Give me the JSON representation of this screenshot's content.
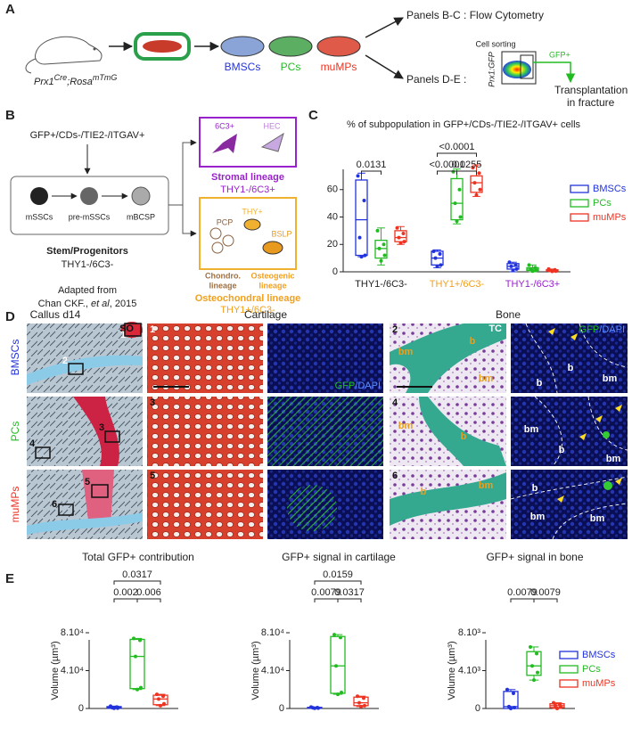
{
  "panel_a": {
    "letter": "A",
    "mouse_label": {
      "gene1": "Prx1",
      "sup1": "Cre",
      "gene2": ";Rosa",
      "sup2": "mTmG"
    },
    "cell_types": [
      "BMSCs",
      "PCs",
      "muMPs"
    ],
    "route_1": "Panels B-C : Flow Cytometry",
    "route_2": "Panels D-E :",
    "sorting": "Cell sorting",
    "flow_axis": "Prx1:GFP",
    "gate": "GFP+",
    "outcome": [
      "Transplantation",
      "in fracture"
    ]
  },
  "panel_b": {
    "letter": "B",
    "gate": "GFP+/CDs-/TIE2-/ITGAV+",
    "stem_cells": [
      "mSSCs",
      "pre-mSSCs",
      "mBCSP"
    ],
    "stem_title": "Stem/Progenitors",
    "stem_marker": "THY1-/6C3-",
    "citation": [
      "Adapted from",
      "Chan CKF., ",
      "et al",
      ", 2015"
    ],
    "stromal_cells": [
      "6C3+",
      "HEC"
    ],
    "stromal_title": "Stromal lineage",
    "stromal_marker": "THY1-/6C3+",
    "osteo_cells": [
      "PCP",
      "THY+",
      "BSLP"
    ],
    "osteo_sublineages": [
      [
        "Chondro.",
        "lineage"
      ],
      [
        "Osteogenic",
        "lineage"
      ]
    ],
    "osteo_title": "Osteochondral lineage",
    "osteo_marker": "THY1+/6C3-"
  },
  "panel_c_letter": "C",
  "panel_d": {
    "letter": "D",
    "headers": [
      "Callus d14",
      "Cartilage",
      "Bone"
    ],
    "rows": [
      "BMSCs",
      "PCs",
      "muMPs"
    ],
    "stains": [
      "SO",
      "TC"
    ],
    "callus_boxes": [
      "1",
      "2",
      "3",
      "4",
      "5",
      "6"
    ],
    "panel_tags": [
      "1",
      "3",
      "5",
      "2",
      "4",
      "6"
    ],
    "channel_labels": [
      [
        "GFP",
        "/DAPI"
      ],
      [
        "GFP",
        "/DAPI"
      ]
    ],
    "bone_tc_labels": [
      [
        "bm",
        "b",
        "bm"
      ],
      [
        "bm",
        "b"
      ],
      [
        "b",
        "bm"
      ]
    ],
    "bone_gfp_labels": [
      [
        "b",
        "b",
        "bm"
      ],
      [
        "bm",
        "b",
        "bm"
      ],
      [
        "b",
        "bm",
        "bm"
      ]
    ]
  },
  "panel_e_letter": "E",
  "chart_data": [
    {
      "type": "box",
      "title": "% of subpopulation in GFP+/CDs-/TIE2-/ITGAV+ cells",
      "categories": [
        "THY1-/6C3-",
        "THY1+/6C3-",
        "THY1-/6C3+"
      ],
      "ylim": [
        0,
        80
      ],
      "yticks": [
        0,
        20,
        40,
        60
      ],
      "legend": "right",
      "annotations": [
        "0.0131",
        "<0.0001",
        "0.0255",
        "<0.0001"
      ],
      "series": [
        {
          "name": "BMSCs",
          "color": "#2233dd",
          "values": [
            {
              "min": 11,
              "q1": 12,
              "median": 38,
              "q3": 67,
              "max": 72,
              "points": [
                70,
                52,
                25,
                12,
                11
              ]
            },
            {
              "min": 3,
              "q1": 5,
              "median": 10,
              "q3": 15,
              "max": 16,
              "points": [
                15,
                13,
                10,
                5,
                4
              ]
            },
            {
              "min": 0,
              "q1": 2,
              "median": 4,
              "q3": 6,
              "max": 7,
              "points": [
                7,
                5,
                4,
                2,
                1
              ]
            }
          ]
        },
        {
          "name": "PCs",
          "color": "#22bb22",
          "values": [
            {
              "min": 5,
              "q1": 10,
              "median": 17,
              "q3": 23,
              "max": 32,
              "points": [
                30,
                20,
                17,
                12,
                8
              ]
            },
            {
              "min": 35,
              "q1": 38,
              "median": 50,
              "q3": 68,
              "max": 75,
              "points": [
                73,
                60,
                50,
                40,
                37
              ]
            },
            {
              "min": 0,
              "q1": 1,
              "median": 2,
              "q3": 3,
              "max": 5,
              "points": [
                5,
                3,
                2,
                1,
                0.5
              ]
            }
          ]
        },
        {
          "name": "muMPs",
          "color": "#ee3322",
          "values": [
            {
              "min": 20,
              "q1": 22,
              "median": 25,
              "q3": 30,
              "max": 33,
              "points": [
                32,
                28,
                25,
                22,
                21
              ]
            },
            {
              "min": 55,
              "q1": 58,
              "median": 65,
              "q3": 70,
              "max": 78,
              "points": [
                76,
                72,
                65,
                60,
                56
              ]
            },
            {
              "min": 0,
              "q1": 0.5,
              "median": 1,
              "q3": 1.5,
              "max": 2,
              "points": [
                2,
                1.5,
                1,
                0.5,
                0.3
              ]
            }
          ]
        }
      ]
    },
    {
      "type": "box",
      "legend": "right",
      "subplots": [
        {
          "title": "Total GFP+ contribution",
          "ylabel": "Volume (µm³)",
          "ylim": [
            0,
            80000
          ],
          "yticks": [
            0,
            {
              "value": 40000,
              "label": "4.10⁴"
            },
            {
              "value": 80000,
              "label": "8.10⁴"
            }
          ],
          "annotations": [
            "0.0317",
            "0.002",
            "0.006"
          ]
        },
        {
          "title": "GFP+ signal in cartilage",
          "ylabel": "Volume (µm³)",
          "ylim": [
            0,
            80000
          ],
          "yticks": [
            0,
            {
              "value": 40000,
              "label": "4.10⁴"
            },
            {
              "value": 80000,
              "label": "8.10⁴"
            }
          ],
          "annotations": [
            "0.0159",
            "0.0079",
            "0.0317"
          ]
        },
        {
          "title": "GFP+ signal in bone",
          "ylabel": "Volume (µm³)",
          "ylim": [
            0,
            8000
          ],
          "yticks": [
            0,
            {
              "value": 4000,
              "label": "4.10³"
            },
            {
              "value": 8000,
              "label": "8.10³"
            }
          ],
          "annotations": [
            "0.0079",
            "0.0079"
          ]
        }
      ],
      "series": [
        {
          "name": "BMSCs",
          "color": "#2233dd",
          "values": [
            {
              "min": 200,
              "q1": 300,
              "median": 800,
              "q3": 2000,
              "max": 2500,
              "points": [
                2500,
                1500,
                800,
                300,
                200
              ]
            },
            {
              "min": 200,
              "q1": 300,
              "median": 700,
              "q3": 1200,
              "max": 1500,
              "points": [
                1500,
                1000,
                700,
                400,
                200
              ]
            },
            {
              "min": 0,
              "q1": 0,
              "median": 200,
              "q3": 1800,
              "max": 2000,
              "points": [
                2000,
                1600,
                200,
                100,
                0
              ]
            }
          ]
        },
        {
          "name": "PCs",
          "color": "#22bb22",
          "values": [
            {
              "min": 20000,
              "q1": 21000,
              "median": 55000,
              "q3": 73000,
              "max": 74000,
              "points": [
                74000,
                72000,
                55000,
                22000,
                20000
              ]
            },
            {
              "min": 15000,
              "q1": 16000,
              "median": 45000,
              "q3": 76000,
              "max": 78000,
              "points": [
                78000,
                75000,
                45000,
                17000,
                15000
              ]
            },
            {
              "min": 3000,
              "q1": 3500,
              "median": 4500,
              "q3": 6000,
              "max": 6500,
              "points": [
                6500,
                5800,
                4500,
                3800,
                3000
              ]
            }
          ]
        },
        {
          "name": "muMPs",
          "color": "#ee3322",
          "values": [
            {
              "min": 3000,
              "q1": 4000,
              "median": 10000,
              "q3": 14000,
              "max": 15000,
              "points": [
                15000,
                13000,
                10000,
                5000,
                3000
              ]
            },
            {
              "min": 2000,
              "q1": 3000,
              "median": 6000,
              "q3": 12000,
              "max": 13000,
              "points": [
                13000,
                11000,
                6000,
                3000,
                2000
              ]
            },
            {
              "min": 0,
              "q1": 100,
              "median": 300,
              "q3": 500,
              "max": 600,
              "points": [
                600,
                450,
                300,
                150,
                0
              ]
            }
          ]
        }
      ]
    }
  ]
}
